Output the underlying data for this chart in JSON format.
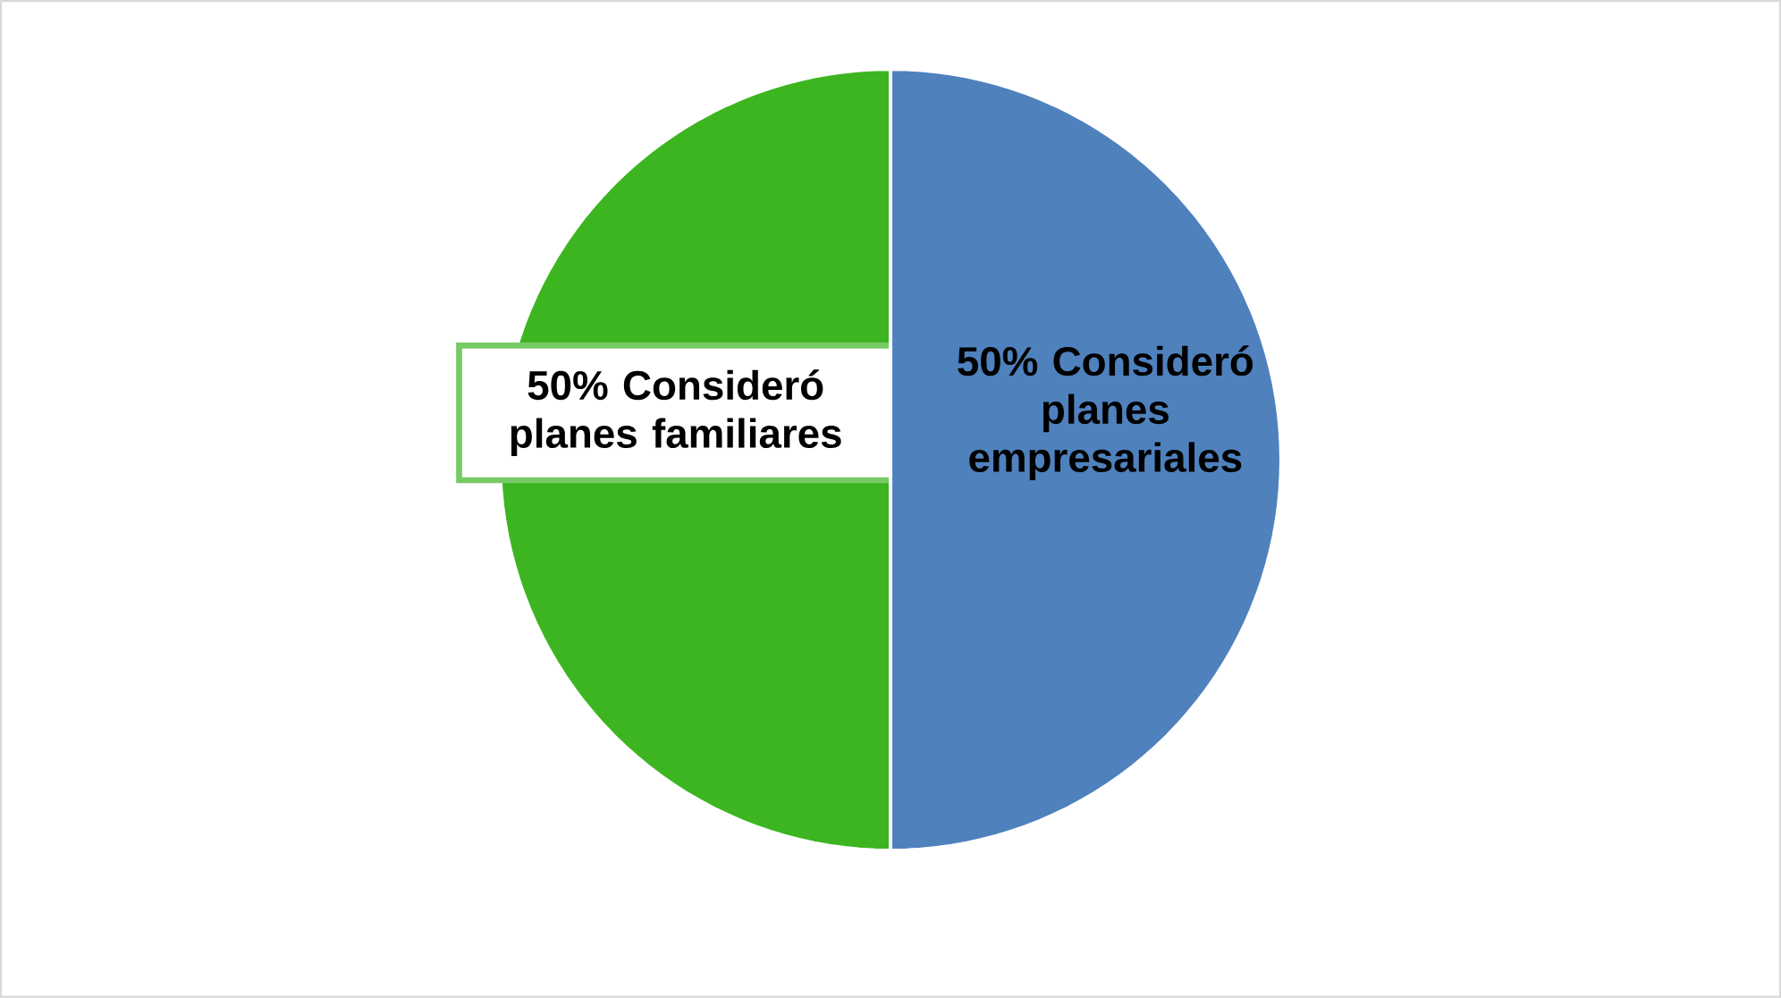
{
  "chart_data": {
    "type": "pie",
    "categories": [
      "50% Consideró planes familiares",
      "50% Consideró planes empresariales"
    ],
    "values": [
      50,
      50
    ],
    "colors": [
      "#3cb521",
      "#4f81bd"
    ]
  }
}
